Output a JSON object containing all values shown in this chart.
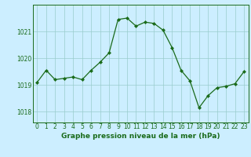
{
  "x": [
    0,
    1,
    2,
    3,
    4,
    5,
    6,
    7,
    8,
    9,
    10,
    11,
    12,
    13,
    14,
    15,
    16,
    17,
    18,
    19,
    20,
    21,
    22,
    23
  ],
  "y": [
    1019.1,
    1019.55,
    1019.2,
    1019.25,
    1019.3,
    1019.2,
    1019.55,
    1019.85,
    1020.2,
    1021.45,
    1021.5,
    1021.2,
    1021.35,
    1021.3,
    1021.05,
    1020.4,
    1019.55,
    1019.15,
    1018.15,
    1018.6,
    1018.9,
    1018.95,
    1019.05,
    1019.5
  ],
  "line_color": "#1a6b1a",
  "marker": "D",
  "markersize": 2.0,
  "linewidth": 0.9,
  "background_color": "#cceeff",
  "plot_bg_color": "#cceeff",
  "grid_color": "#99cccc",
  "xlabel": "Graphe pression niveau de la mer (hPa)",
  "xlabel_fontsize": 6.5,
  "yticks": [
    1018,
    1019,
    1020,
    1021
  ],
  "ylim": [
    1017.6,
    1022.0
  ],
  "xticks": [
    0,
    1,
    2,
    3,
    4,
    5,
    6,
    7,
    8,
    9,
    10,
    11,
    12,
    13,
    14,
    15,
    16,
    17,
    18,
    19,
    20,
    21,
    22,
    23
  ],
  "tick_fontsize": 5.5,
  "tick_color": "#1a6b1a",
  "spine_color": "#1a6b1a"
}
